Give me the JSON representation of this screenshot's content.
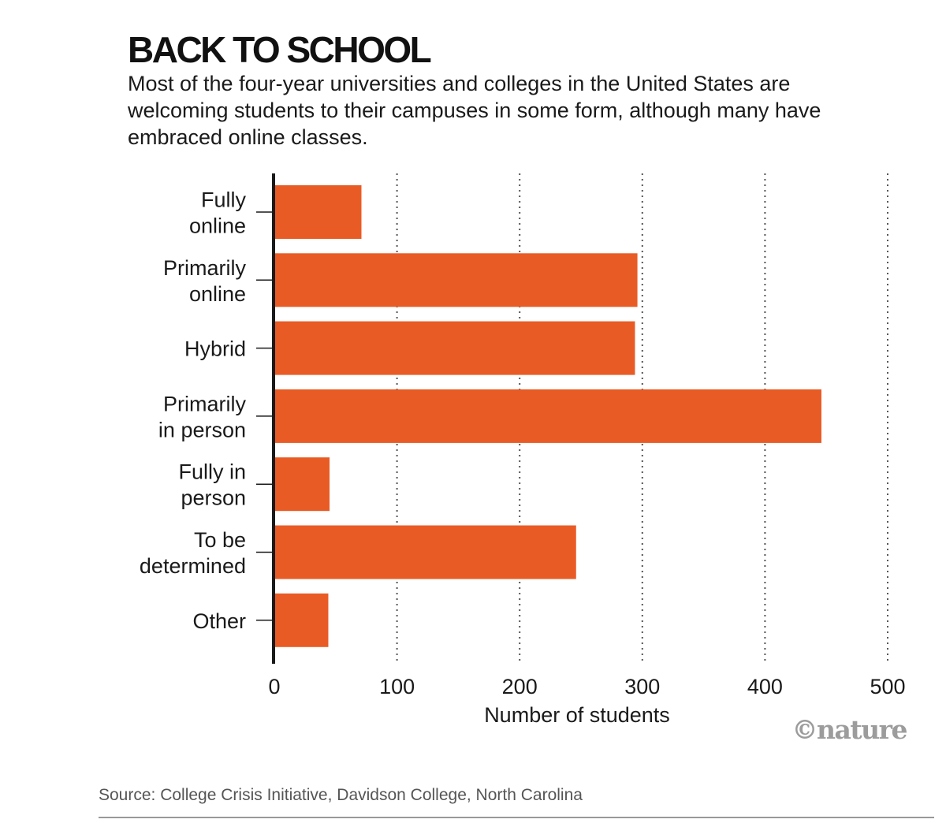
{
  "header": {
    "title": "BACK TO SCHOOL",
    "subtitle": "Most of the four-year universities and colleges in the United States are welcoming students to their campuses in some form, although many have embraced online classes."
  },
  "chart_data": {
    "type": "bar",
    "orientation": "horizontal",
    "categories": [
      [
        "Fully",
        "online"
      ],
      [
        "Primarily",
        "online"
      ],
      [
        "Hybrid"
      ],
      [
        "Primarily",
        "in person"
      ],
      [
        "Fully in",
        "person"
      ],
      [
        "To be",
        "determined"
      ],
      [
        "Other"
      ]
    ],
    "values": [
      71,
      296,
      294,
      446,
      45,
      246,
      44
    ],
    "xlabel": "Number of students",
    "xlim": [
      0,
      500
    ],
    "xticks": [
      "0",
      "100",
      "200",
      "300",
      "400",
      "500"
    ],
    "xtick_values": [
      0,
      100,
      200,
      300,
      400,
      500
    ],
    "grid": "vertical dotted",
    "colors": {
      "bar": "#e95b25",
      "axis": "#1a1a1a",
      "grid": "#555555"
    }
  },
  "footer": {
    "source": "Source: College Crisis Initiative, Davidson College, North Carolina",
    "logo": "©nature"
  }
}
